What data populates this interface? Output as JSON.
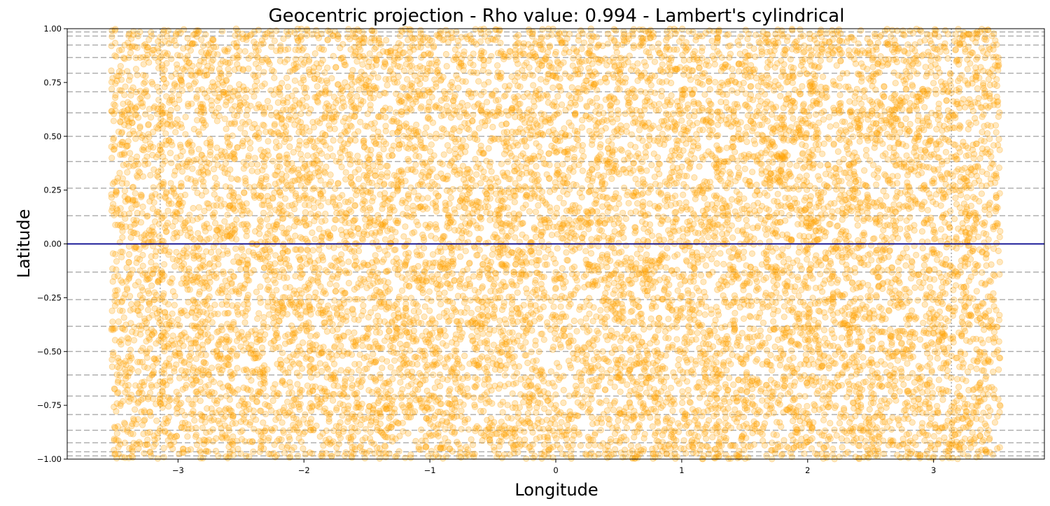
{
  "chart_data": {
    "type": "scatter",
    "title": "Geocentric projection - Rho value: 0.994 - Lambert's cylindrical",
    "xlabel": "Longitude",
    "ylabel": "Latitude",
    "xlim": [
      -3.88,
      3.88
    ],
    "ylim": [
      -1.0,
      1.0
    ],
    "x_ticks": [
      -3,
      -2,
      -1,
      0,
      1,
      2,
      3
    ],
    "x_tick_labels": [
      "−3",
      "−2",
      "−1",
      "0",
      "1",
      "2",
      "3"
    ],
    "y_ticks": [
      -1.0,
      -0.75,
      -0.5,
      -0.25,
      0.0,
      0.25,
      0.5,
      0.75,
      1.0
    ],
    "y_tick_labels": [
      "−1.00",
      "−0.75",
      "−0.50",
      "−0.25",
      "0.00",
      "0.25",
      "0.50",
      "0.75",
      "1.00"
    ],
    "parallels": [
      -0.985,
      -0.966,
      -0.924,
      -0.866,
      -0.793,
      -0.707,
      -0.609,
      -0.5,
      -0.383,
      -0.259,
      -0.131,
      0.131,
      0.259,
      0.383,
      0.5,
      0.609,
      0.707,
      0.793,
      0.866,
      0.924,
      0.966,
      0.985
    ],
    "meridians": [
      -3.1416,
      3.1416
    ],
    "equator": 0.0,
    "series": [
      {
        "x_range": [
          -3.53,
          3.53
        ],
        "y_range": [
          -1.0,
          1.0
        ],
        "point_count": 12000,
        "marker": "circle",
        "color": "#FFA500",
        "alpha": 0.25
      }
    ],
    "colors": {
      "points": "#FFA500",
      "points_edge": "#FF9F00",
      "equator": "#00008B",
      "gridlines": "#B0B0B0",
      "meridians": "#A9A9A9"
    },
    "grid": false,
    "legend": "none"
  }
}
